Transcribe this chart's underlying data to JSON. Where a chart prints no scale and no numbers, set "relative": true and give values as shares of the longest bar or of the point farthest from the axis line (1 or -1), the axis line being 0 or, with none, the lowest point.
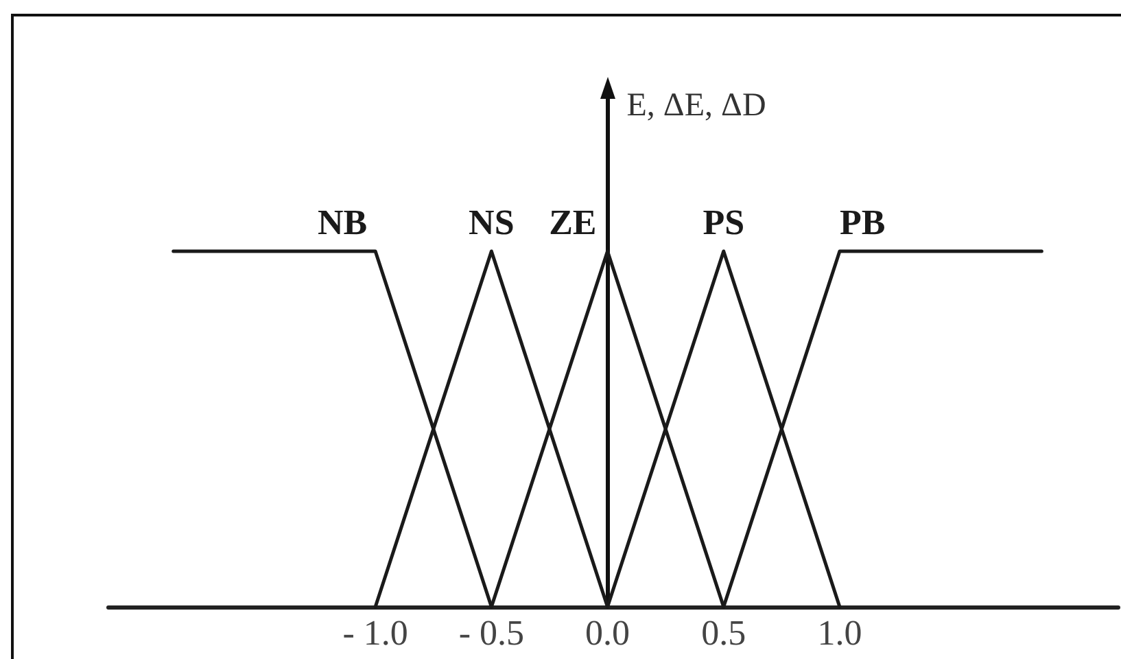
{
  "chart_data": {
    "type": "line",
    "relative": true,
    "ylabel": "E, ΔE, ΔD",
    "xlim": [
      -2.15,
      2.2
    ],
    "xticks": [
      {
        "value": -1,
        "label": "- 1.0"
      },
      {
        "value": -0.5,
        "label": "- 0.5"
      },
      {
        "value": 0,
        "label": "0.0"
      },
      0.5,
      {
        "value": 1,
        "label": "1.0"
      }
    ],
    "tick_labels": "x",
    "marker": "none",
    "line_style": "solid",
    "series": [
      {
        "name": "NB",
        "color": "#1a1a1a",
        "x": [
          -1.87,
          -1,
          -0.5
        ],
        "values": [
          1,
          1,
          0
        ]
      },
      {
        "name": "NS",
        "color": "#1a1a1a",
        "x": [
          -1,
          -0.5,
          0
        ],
        "values": [
          0,
          1,
          0
        ]
      },
      {
        "name": "ZE",
        "color": "#1a1a1a",
        "x": [
          -0.5,
          0,
          0.5
        ],
        "values": [
          0,
          1,
          0
        ]
      },
      {
        "name": "PS",
        "color": "#1a1a1a",
        "x": [
          0,
          0.5,
          1
        ],
        "values": [
          0,
          1,
          0
        ]
      },
      {
        "name": "PB",
        "color": "#1a1a1a",
        "x": [
          0.5,
          1,
          1.87
        ],
        "values": [
          0,
          1,
          1
        ]
      }
    ]
  }
}
